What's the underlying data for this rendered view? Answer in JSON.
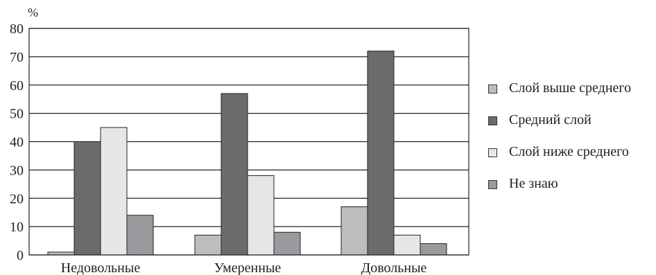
{
  "chart_data": {
    "type": "bar",
    "title": "",
    "xlabel": "",
    "ylabel": "%",
    "ylim": [
      0,
      80
    ],
    "yticks": [
      0,
      10,
      20,
      30,
      40,
      50,
      60,
      70,
      80
    ],
    "grid": true,
    "legend_position": "right",
    "categories": [
      "Недовольные",
      "Умеренные",
      "Довольные"
    ],
    "series": [
      {
        "name": "Слой выше среднего",
        "color": "#bdbdbd",
        "values": [
          1,
          7,
          17
        ]
      },
      {
        "name": "Средний слой",
        "color": "#6b6b6e",
        "values": [
          40,
          57,
          72
        ]
      },
      {
        "name": "Слой ниже среднего",
        "color": "#e6e6e6",
        "values": [
          45,
          28,
          7
        ]
      },
      {
        "name": "Не знаю",
        "color": "#999a9d",
        "values": [
          14,
          8,
          4
        ]
      }
    ]
  }
}
